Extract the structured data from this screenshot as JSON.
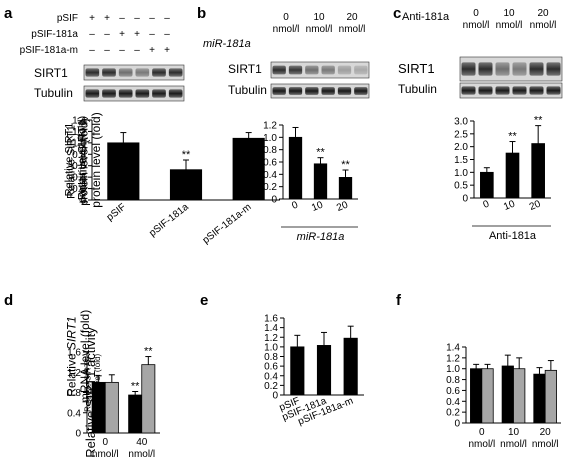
{
  "panels": {
    "a": {
      "letter": "a",
      "design_rows": [
        {
          "label": "pSIF",
          "marks": [
            "+",
            "+",
            "–",
            "–",
            "–",
            "–"
          ]
        },
        {
          "label": "pSIF-181a",
          "marks": [
            "–",
            "–",
            "+",
            "+",
            "–",
            "–"
          ]
        },
        {
          "label": "pSIF-181a-m",
          "marks": [
            "–",
            "–",
            "–",
            "–",
            "+",
            "+"
          ]
        }
      ],
      "blots": [
        "SIRT1",
        "Tubulin"
      ],
      "chart_data": {
        "type": "bar",
        "categories": [
          "pSIF",
          "pSIF-181a",
          "pSIF-181a-m"
        ],
        "values": [
          1.0,
          0.53,
          1.08
        ],
        "errors": [
          0.18,
          0.17,
          0.1
        ],
        "significance": [
          "",
          "**",
          ""
        ],
        "ylabel": [
          "Relative SIRT1",
          "protein level (fold)"
        ],
        "yticks": [
          "0",
          "0.2",
          "0.4",
          "0.6",
          "0.8",
          "1.0",
          "1.2",
          "1.4"
        ],
        "ylim": [
          0,
          1.4
        ]
      }
    },
    "b": {
      "letter": "b",
      "condition_label": "miR-181a",
      "doses": [
        "0",
        "10",
        "20"
      ],
      "dose_unit": "nmol/l",
      "blots": [
        "SIRT1",
        "Tubulin"
      ],
      "chart_data": {
        "type": "bar",
        "categories": [
          "0",
          "10",
          "20"
        ],
        "category_unit": "nmol/l",
        "values": [
          1.0,
          0.57,
          0.35
        ],
        "errors": [
          0.16,
          0.1,
          0.12
        ],
        "significance": [
          "",
          "**",
          "**"
        ],
        "ylabel": [
          "Relative SIRT1",
          "protein level (fold)"
        ],
        "yticks": [
          "0",
          "0.2",
          "0.4",
          "0.6",
          "0.8",
          "1.0",
          "1.2"
        ],
        "ylim": [
          0,
          1.2
        ],
        "xlabel": "miR-181a"
      }
    },
    "c": {
      "letter": "c",
      "condition_label": "Anti-181a",
      "doses": [
        "0",
        "10",
        "20"
      ],
      "dose_unit": "nmol/l",
      "blots": [
        "SIRT1",
        "Tubulin"
      ],
      "chart_data": {
        "type": "bar",
        "categories": [
          "0",
          "10",
          "20"
        ],
        "category_unit": "nmol/l",
        "values": [
          1.0,
          1.75,
          2.12
        ],
        "errors": [
          0.18,
          0.45,
          0.7
        ],
        "significance": [
          "",
          "**",
          "**"
        ],
        "ylabel": [
          "Relative SIRT1",
          "protein level (fold)"
        ],
        "yticks": [
          "0",
          "0.5",
          "1.0",
          "1.5",
          "2.0",
          "2.5",
          "3.0"
        ],
        "ylim": [
          0,
          3.0
        ],
        "xlabel": "Anti-181a"
      }
    },
    "d": {
      "letter": "d",
      "chart_data": {
        "type": "bar",
        "categories": [
          "0",
          "40"
        ],
        "category_unit": "nmol/l",
        "series": [
          {
            "values": [
              1.0,
              0.75
            ],
            "errors": [
              0.13,
              0.07
            ],
            "color": "#000000",
            "significance": [
              "",
              "**"
            ]
          },
          {
            "values": [
              1.0,
              1.35
            ],
            "errors": [
              0.15,
              0.16
            ],
            "color": "#a6a6a6",
            "significance": [
              "",
              "**"
            ]
          }
        ],
        "ylabel": [
          "Relative SIRT1 activity"
        ],
        "yticks": [
          "0",
          "0.4",
          "0.8",
          "1.2",
          "1.6"
        ],
        "ylim": [
          0,
          1.6
        ]
      }
    },
    "e": {
      "letter": "e",
      "chart_data": {
        "type": "bar",
        "categories": [
          "pSIF",
          "pSIF-181a",
          "pSIF-181a-m"
        ],
        "values": [
          1.0,
          1.03,
          1.18
        ],
        "errors": [
          0.24,
          0.27,
          0.25
        ],
        "ylabel_prefix": "Relative ",
        "ylabel_italic": "SIRT1",
        "ylabel_line2": "mRNA level (fold)",
        "yticks": [
          "0",
          "0.2",
          "0.4",
          "0.6",
          "0.8",
          "1.0",
          "1.2",
          "1.4",
          "1.6"
        ],
        "ylim": [
          0,
          1.6
        ]
      }
    },
    "f": {
      "letter": "f",
      "chart_data": {
        "type": "bar",
        "categories": [
          "0",
          "10",
          "20"
        ],
        "category_unit": "nmol/l",
        "series": [
          {
            "values": [
              1.0,
              1.05,
              0.9
            ],
            "errors": [
              0.08,
              0.2,
              0.12
            ],
            "color": "#000000"
          },
          {
            "values": [
              1.0,
              1.0,
              0.97
            ],
            "errors": [
              0.08,
              0.2,
              0.18
            ],
            "color": "#a6a6a6"
          }
        ],
        "ylabel_prefix": "Relative ",
        "ylabel_italic": "SIRT1",
        "ylabel_line2": "mRNA level (fold)",
        "yticks": [
          "0",
          "0.2",
          "0.4",
          "0.6",
          "0.8",
          "1.0",
          "1.2",
          "1.4"
        ],
        "ylim": [
          0,
          1.4
        ]
      }
    }
  }
}
